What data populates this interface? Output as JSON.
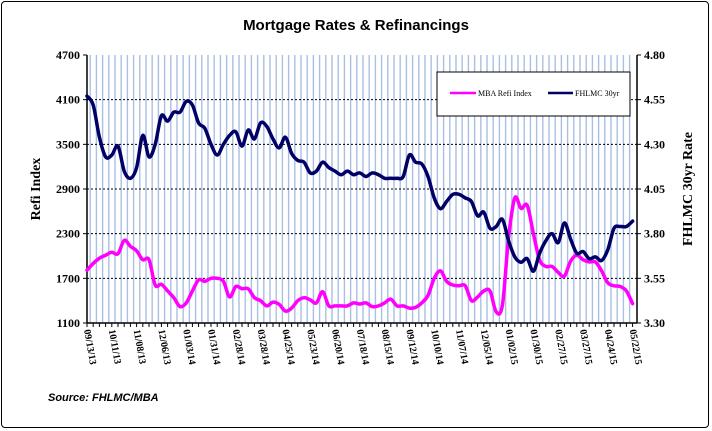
{
  "chart_data": {
    "type": "line",
    "title": "Mortgage Rates & Refinancings",
    "source": "Source: FHLMC/MBA",
    "ylabel": "Refi Index",
    "ylabel_right": "FHLMC 30yr Rate",
    "ylim": [
      1100,
      4700
    ],
    "yticks": [
      "1100",
      "1700",
      "2300",
      "2900",
      "3500",
      "4100",
      "4700"
    ],
    "ylim_right": [
      3.3,
      4.8
    ],
    "yticks_right": [
      "3.30",
      "3.55",
      "3.80",
      "4.05",
      "4.30",
      "4.55",
      "4.80"
    ],
    "x_tick_labels": [
      "09/13/13",
      "10/11/13",
      "11/08/13",
      "12/06/13",
      "01/03/14",
      "01/31/14",
      "02/28/14",
      "03/28/14",
      "04/25/14",
      "05/23/14",
      "06/20/14",
      "07/18/14",
      "08/15/14",
      "09/12/14",
      "10/10/14",
      "11/07/14",
      "12/05/14",
      "01/02/15",
      "01/30/15",
      "02/27/15",
      "03/27/15",
      "04/24/15",
      "05/22/15"
    ],
    "x_note": "weekly observations, 09/13/13 to 05/22/15",
    "legend_placement": "top-right",
    "grid": "horizontal dotted",
    "series": [
      {
        "name": "MBA Refi Index",
        "axis": "left",
        "color": "#ff00ff",
        "values": [
          1810,
          1900,
          1970,
          2010,
          2050,
          2030,
          2210,
          2130,
          2070,
          1950,
          1950,
          1610,
          1620,
          1530,
          1440,
          1320,
          1370,
          1530,
          1680,
          1660,
          1700,
          1700,
          1660,
          1450,
          1590,
          1560,
          1560,
          1440,
          1400,
          1330,
          1380,
          1350,
          1260,
          1300,
          1400,
          1440,
          1410,
          1370,
          1520,
          1330,
          1330,
          1330,
          1330,
          1370,
          1355,
          1370,
          1320,
          1330,
          1370,
          1420,
          1330,
          1330,
          1300,
          1310,
          1370,
          1470,
          1700,
          1800,
          1660,
          1610,
          1600,
          1600,
          1400,
          1450,
          1530,
          1530,
          1250,
          1340,
          2250,
          2780,
          2640,
          2680,
          2300,
          1950,
          1860,
          1860,
          1780,
          1730,
          1930,
          2010,
          1950,
          1920,
          1920,
          1800,
          1640,
          1600,
          1590,
          1530,
          1360
        ]
      },
      {
        "name": "FHLMC 30yr",
        "axis": "right",
        "color": "#000066",
        "values": [
          4.57,
          4.52,
          4.34,
          4.23,
          4.24,
          4.29,
          4.15,
          4.11,
          4.17,
          4.35,
          4.23,
          4.3,
          4.46,
          4.43,
          4.48,
          4.48,
          4.54,
          4.52,
          4.42,
          4.39,
          4.3,
          4.24,
          4.3,
          4.35,
          4.37,
          4.29,
          4.38,
          4.33,
          4.42,
          4.4,
          4.33,
          4.28,
          4.34,
          4.25,
          4.21,
          4.2,
          4.14,
          4.15,
          4.2,
          4.17,
          4.15,
          4.13,
          4.15,
          4.13,
          4.14,
          4.12,
          4.14,
          4.13,
          4.11,
          4.11,
          4.11,
          4.12,
          4.24,
          4.2,
          4.19,
          4.12,
          4.0,
          3.94,
          3.98,
          4.02,
          4.02,
          4.0,
          3.98,
          3.9,
          3.92,
          3.83,
          3.84,
          3.88,
          3.76,
          3.67,
          3.64,
          3.66,
          3.59,
          3.69,
          3.76,
          3.8,
          3.75,
          3.86,
          3.77,
          3.69,
          3.7,
          3.66,
          3.67,
          3.65,
          3.71,
          3.83,
          3.84,
          3.84,
          3.87
        ]
      }
    ]
  }
}
